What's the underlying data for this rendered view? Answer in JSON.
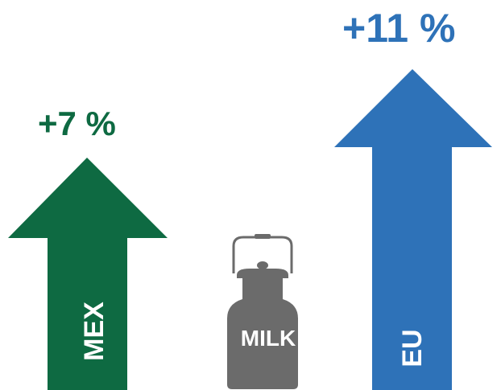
{
  "items": [
    {
      "label": "MEX",
      "change": "+7 %",
      "color": "#0e6a42"
    },
    {
      "label": "EU",
      "change": "+11 %",
      "color": "#2e72b8"
    }
  ],
  "center": {
    "label": "MILK",
    "icon": "milk-can-icon",
    "color": "#6b6b6b"
  }
}
